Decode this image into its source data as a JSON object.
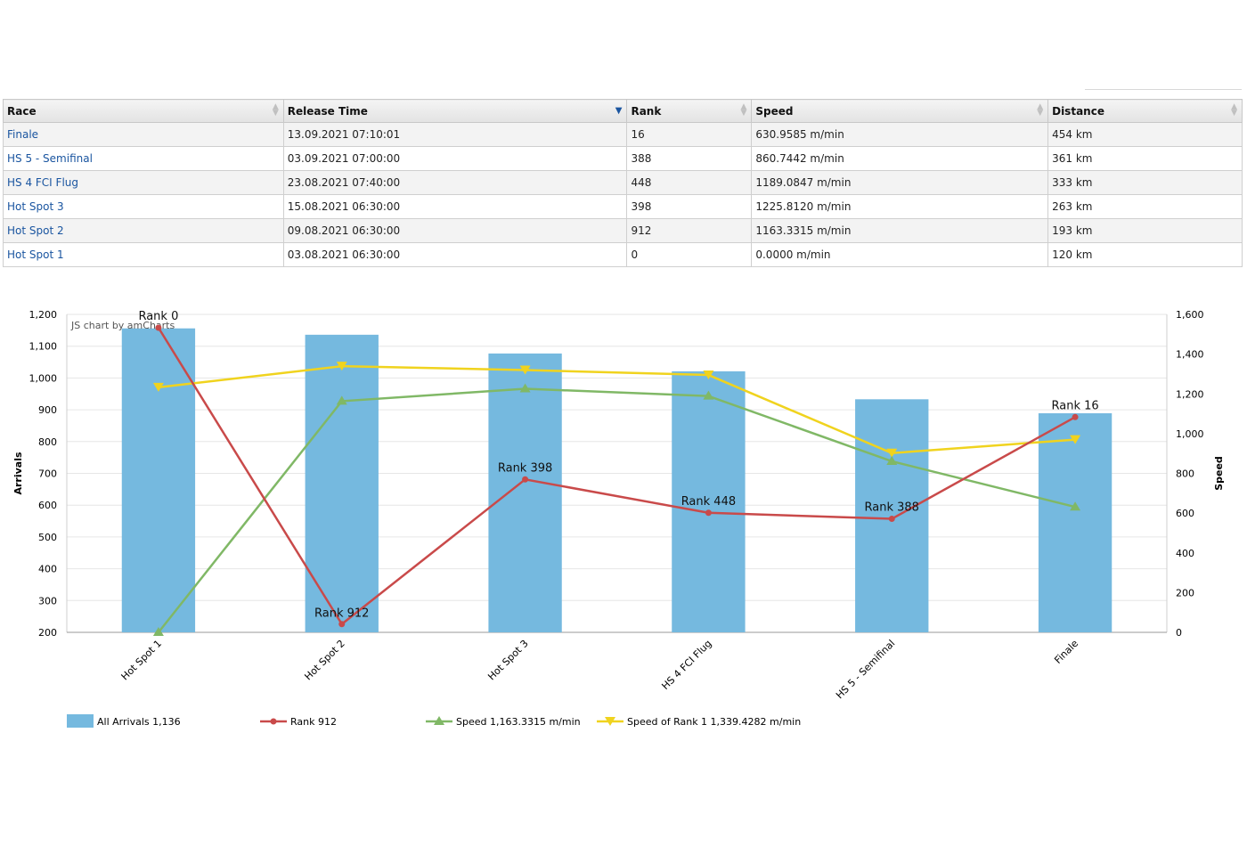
{
  "table": {
    "columns": [
      "Race",
      "Release Time",
      "Rank",
      "Speed",
      "Distance"
    ],
    "rows": [
      [
        "Finale",
        "13.09.2021 07:10:01",
        "16",
        "630.9585 m/min",
        "454 km"
      ],
      [
        "HS 5 - Semifinal",
        "03.09.2021 07:00:00",
        "388",
        "860.7442 m/min",
        "361 km"
      ],
      [
        "HS 4 FCI Flug",
        "23.08.2021 07:40:00",
        "448",
        "1189.0847 m/min",
        "333 km"
      ],
      [
        "Hot Spot 3",
        "15.08.2021 06:30:00",
        "398",
        "1225.8120 m/min",
        "263 km"
      ],
      [
        "Hot Spot 2",
        "09.08.2021 06:30:00",
        "912",
        "1163.3315 m/min",
        "193 km"
      ],
      [
        "Hot Spot 1",
        "03.08.2021 06:30:00",
        "0",
        "0.0000 m/min",
        "120 km"
      ]
    ],
    "sorted_column": "Release Time",
    "sort_direction": "descending"
  },
  "chart_data": {
    "type": "bar",
    "credit": "JS chart by amCharts",
    "categories": [
      "Hot Spot 1",
      "Hot Spot 2",
      "Hot Spot 3",
      "HS 4 FCI Flug",
      "HS 5 - Semifinal",
      "Finale"
    ],
    "ylabel_left": "Arrivals",
    "ylabel_right": "Speed",
    "ylim_left": [
      200,
      1200
    ],
    "ylim_right": [
      0,
      1600
    ],
    "left_ticks": [
      200,
      300,
      400,
      500,
      600,
      700,
      800,
      900,
      1000,
      1100,
      1200
    ],
    "right_ticks": [
      0,
      200,
      400,
      600,
      800,
      1000,
      1200,
      1400,
      1600
    ],
    "grid": true,
    "legend_position": "bottom-left",
    "series": [
      {
        "name": "All Arrivals",
        "kind": "bar",
        "axis": "left",
        "color": "#75b9df",
        "values": [
          1156,
          1136,
          1077,
          1021,
          933,
          889
        ],
        "legend_value": "1,136"
      },
      {
        "name": "Rank",
        "kind": "line",
        "marker": "circle",
        "axis": "left",
        "color": "#c94a4a",
        "values": [
          1158,
          226,
          681,
          576,
          557,
          877
        ],
        "labels": [
          "Rank 0",
          "Rank 912",
          "Rank 398",
          "Rank 448",
          "Rank 388",
          "Rank 16"
        ],
        "legend_value": "912"
      },
      {
        "name": "Speed",
        "kind": "line",
        "marker": "triangle-up",
        "axis": "right",
        "color": "#80b866",
        "values": [
          0,
          1163.3315,
          1225.812,
          1189.0847,
          860.7442,
          630.9585
        ],
        "legend_value": "1,163.3315 m/min"
      },
      {
        "name": "Speed of Rank 1",
        "kind": "line",
        "marker": "triangle-down",
        "axis": "right",
        "color": "#f0d31e",
        "values": [
          1233,
          1339.4282,
          1320,
          1295,
          902,
          970
        ],
        "legend_value": "1,339.4282 m/min"
      }
    ]
  }
}
